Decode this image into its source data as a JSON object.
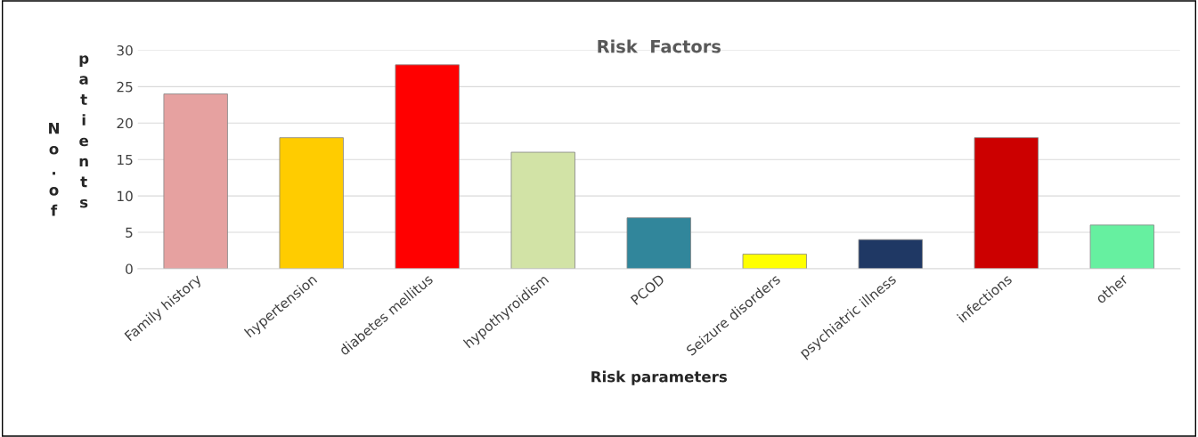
{
  "chart_data": {
    "type": "bar",
    "title": "Risk  Factors",
    "xlabel": "Risk parameters",
    "ylabel": "No. of patients",
    "categories": [
      "Family history",
      "hypertension",
      "diabetes mellitus",
      "hypothyroidism",
      "PCOD",
      "Seizure disorders",
      "psychiatric illness",
      "infections",
      "other"
    ],
    "values": [
      24,
      18,
      28,
      16,
      7,
      2,
      4,
      18,
      6
    ],
    "colors": [
      "#e6a1a0",
      "#ffcc00",
      "#ff0000",
      "#d2e3a6",
      "#31869b",
      "#ffff00",
      "#1f3864",
      "#cc0000",
      "#66f0a0"
    ],
    "ylim": [
      0,
      30
    ],
    "yticks": [
      0,
      5,
      10,
      15,
      20,
      25,
      30
    ],
    "grid": "y",
    "legend": false
  }
}
